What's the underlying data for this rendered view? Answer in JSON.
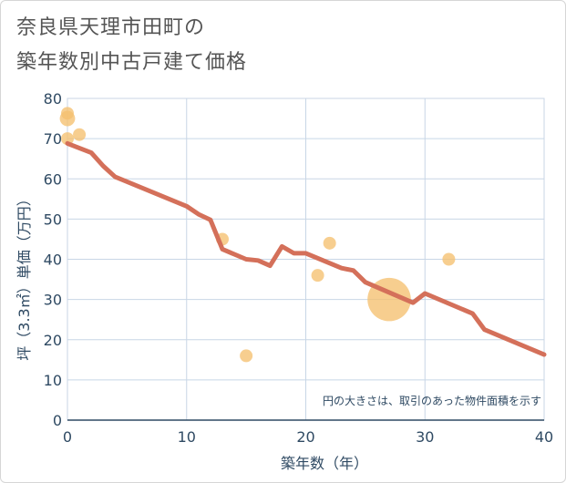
{
  "chart_data": {
    "type": "scatter",
    "title_line1": "奈良県天理市田町の",
    "title_line2": "築年数別中古戸建て価格",
    "xlabel": "築年数（年）",
    "ylabel": "坪（3.3㎡）単価（万円）",
    "xlim": [
      0,
      40
    ],
    "ylim": [
      0,
      80
    ],
    "xticks": [
      0,
      10,
      20,
      30,
      40
    ],
    "yticks": [
      0,
      10,
      20,
      30,
      40,
      50,
      60,
      70,
      80
    ],
    "grid": true,
    "note": "円の大きさは、取引のあった物件面積を示す",
    "colors": {
      "trend": "#d4705a",
      "bubble": "#f5c070",
      "grid": "#c8d6e6",
      "axis": "#2f4a63"
    },
    "trend_line": {
      "x": [
        0,
        2,
        3,
        4,
        10,
        11,
        12,
        13,
        15,
        16,
        17,
        18,
        19,
        20,
        23,
        24,
        25,
        29,
        30,
        34,
        35,
        40
      ],
      "y": [
        68.8,
        66.5,
        63.2,
        60.5,
        53.2,
        51.2,
        49.8,
        42.5,
        40.0,
        39.7,
        38.4,
        43.2,
        41.5,
        41.5,
        37.8,
        37.2,
        34.3,
        29.2,
        31.5,
        26.5,
        22.5,
        16.3
      ]
    },
    "bubbles": [
      {
        "x": 0,
        "y": 76.3,
        "size": 1.0
      },
      {
        "x": 0,
        "y": 75.0,
        "size": 1.2
      },
      {
        "x": 0,
        "y": 70.0,
        "size": 1.0
      },
      {
        "x": 1,
        "y": 71.0,
        "size": 1.0
      },
      {
        "x": 13,
        "y": 45.0,
        "size": 1.0
      },
      {
        "x": 15,
        "y": 16.0,
        "size": 1.0
      },
      {
        "x": 21,
        "y": 36.0,
        "size": 1.0
      },
      {
        "x": 22,
        "y": 44.0,
        "size": 1.0
      },
      {
        "x": 27,
        "y": 30.0,
        "size": 3.4
      },
      {
        "x": 32,
        "y": 40.0,
        "size": 1.0
      }
    ]
  }
}
